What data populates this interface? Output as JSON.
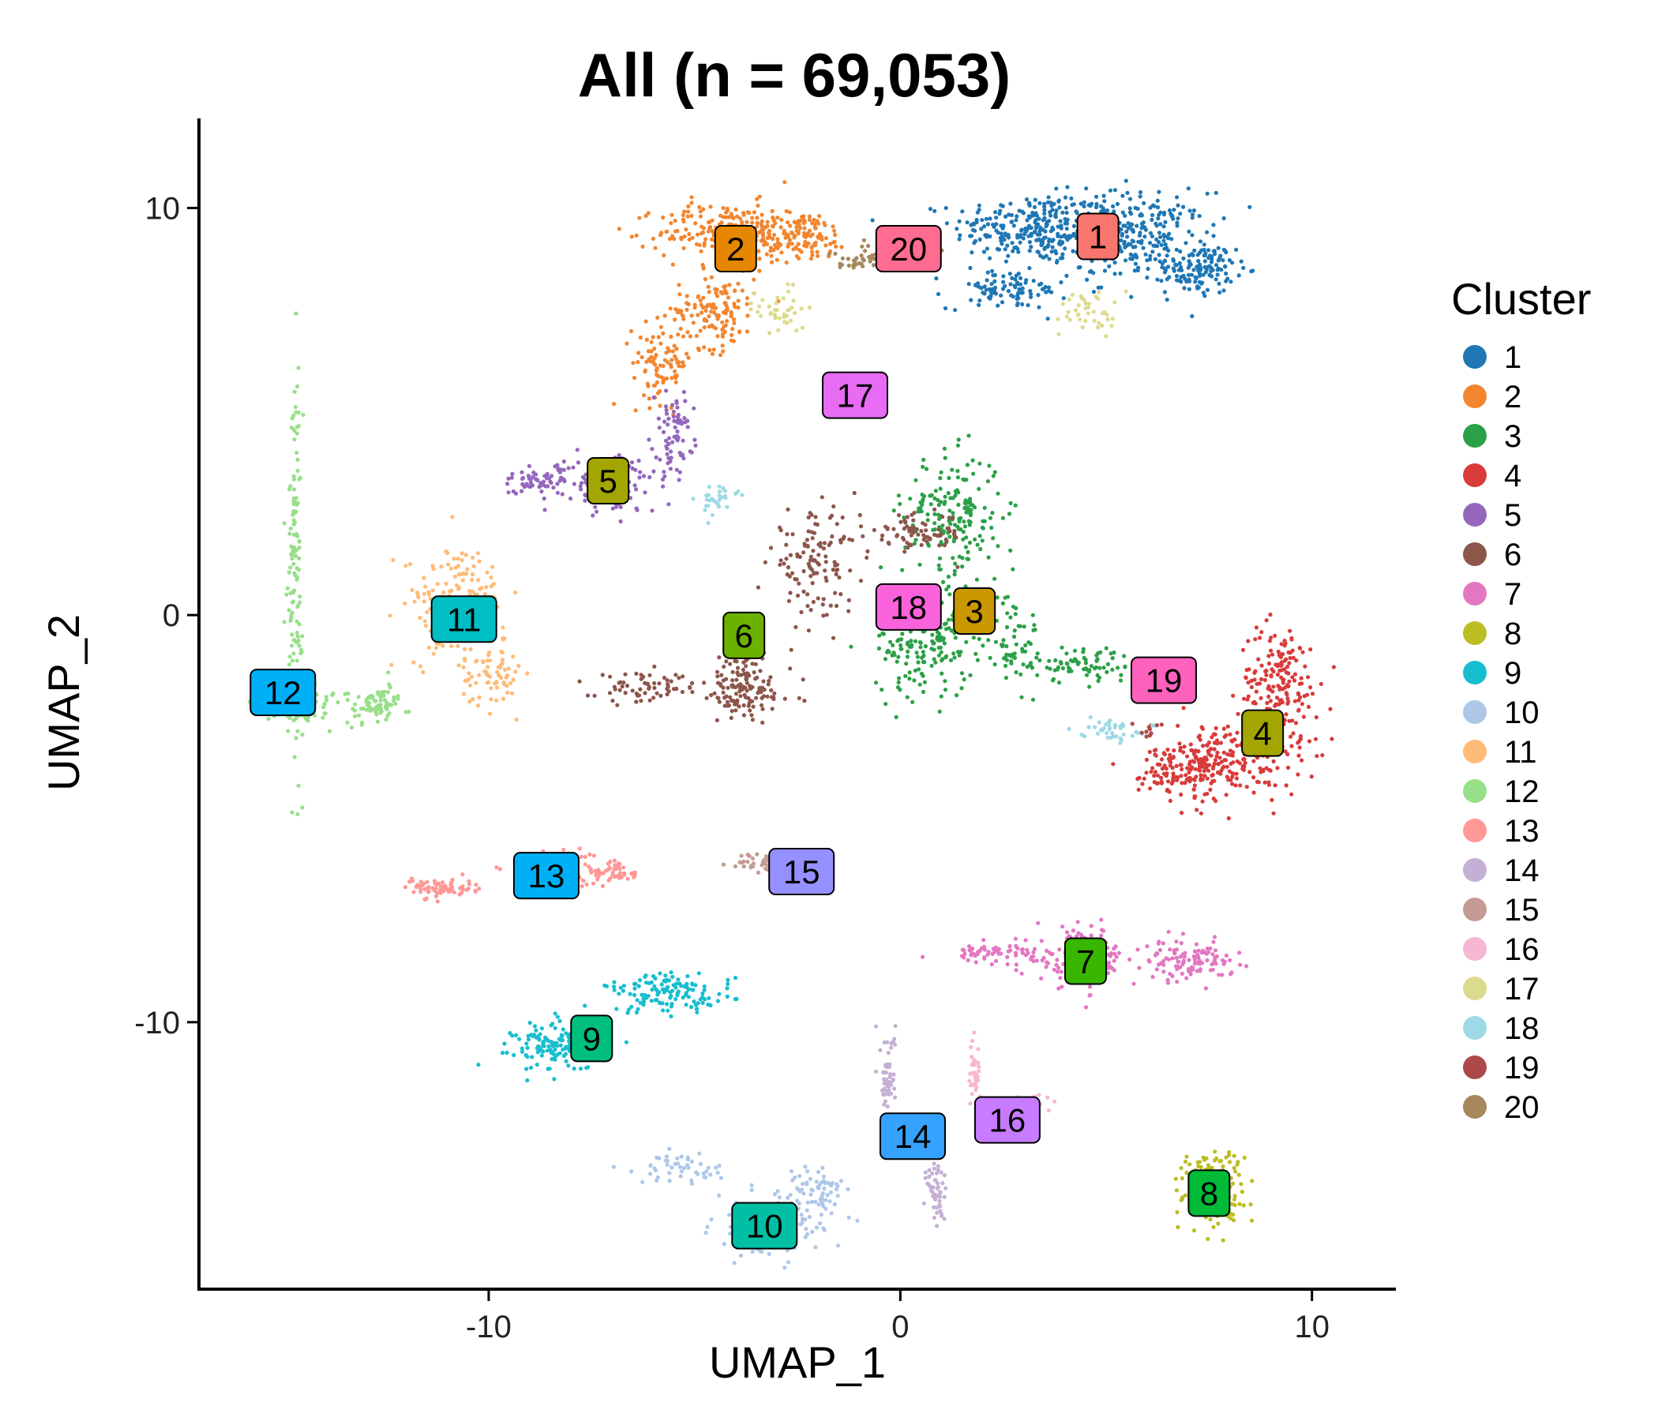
{
  "chart_data": {
    "type": "scatter",
    "title": "All (n = 69,053)",
    "xlabel": "UMAP_1",
    "ylabel": "UMAP_2",
    "xlim": [
      -17,
      12
    ],
    "ylim": [
      -16.5,
      12.2
    ],
    "xticks": [
      -10,
      0,
      10
    ],
    "yticks": [
      10,
      0,
      -10
    ],
    "xtick_labels": [
      "-10",
      "0",
      "10"
    ],
    "ytick_labels": [
      "10",
      "0",
      "-10"
    ],
    "grid": false,
    "legend": {
      "title": "Cluster",
      "placement": "right",
      "entries": [
        {
          "label": "1",
          "color": "#1F77B4"
        },
        {
          "label": "2",
          "color": "#F28630"
        },
        {
          "label": "3",
          "color": "#2CA048"
        },
        {
          "label": "4",
          "color": "#D93B3B"
        },
        {
          "label": "5",
          "color": "#9467BD"
        },
        {
          "label": "6",
          "color": "#8C564B"
        },
        {
          "label": "7",
          "color": "#E377C2"
        },
        {
          "label": "8",
          "color": "#BCBD22"
        },
        {
          "label": "9",
          "color": "#17BECF"
        },
        {
          "label": "10",
          "color": "#AEC7E8"
        },
        {
          "label": "11",
          "color": "#FFBB78"
        },
        {
          "label": "12",
          "color": "#98DF8A"
        },
        {
          "label": "13",
          "color": "#FF9896"
        },
        {
          "label": "14",
          "color": "#C5B0D5"
        },
        {
          "label": "15",
          "color": "#C49C94"
        },
        {
          "label": "16",
          "color": "#F7B6D2"
        },
        {
          "label": "17",
          "color": "#DBDB8D"
        },
        {
          "label": "18",
          "color": "#9EDAE5"
        },
        {
          "label": "19",
          "color": "#AD494A"
        },
        {
          "label": "20",
          "color": "#A5885C"
        }
      ]
    },
    "clusters": [
      {
        "id": "1",
        "centroid": [
          4.8,
          9.3
        ],
        "label_fill": "#F8766D"
      },
      {
        "id": "2",
        "centroid": [
          -4.0,
          9.0
        ],
        "label_fill": "#E58700"
      },
      {
        "id": "3",
        "centroid": [
          1.8,
          0.1
        ],
        "label_fill": "#C99800"
      },
      {
        "id": "4",
        "centroid": [
          8.8,
          -2.9
        ],
        "label_fill": "#A3A500"
      },
      {
        "id": "5",
        "centroid": [
          -7.1,
          3.3
        ],
        "label_fill": "#A3A500"
      },
      {
        "id": "6",
        "centroid": [
          -3.8,
          -0.5
        ],
        "label_fill": "#6BB100"
      },
      {
        "id": "7",
        "centroid": [
          4.5,
          -8.5
        ],
        "label_fill": "#39B600"
      },
      {
        "id": "8",
        "centroid": [
          7.5,
          -14.2
        ],
        "label_fill": "#00BA38"
      },
      {
        "id": "9",
        "centroid": [
          -7.5,
          -10.4
        ],
        "label_fill": "#00BF7D"
      },
      {
        "id": "10",
        "centroid": [
          -3.3,
          -15.0
        ],
        "label_fill": "#00BFA5"
      },
      {
        "id": "11",
        "centroid": [
          -10.6,
          -0.1
        ],
        "label_fill": "#00BFC4"
      },
      {
        "id": "12",
        "centroid": [
          -15.0,
          -1.9
        ],
        "label_fill": "#00B0F6"
      },
      {
        "id": "13",
        "centroid": [
          -8.6,
          -6.4
        ],
        "label_fill": "#00B0F6"
      },
      {
        "id": "14",
        "centroid": [
          0.3,
          -12.8
        ],
        "label_fill": "#35A2FF"
      },
      {
        "id": "15",
        "centroid": [
          -2.4,
          -6.3
        ],
        "label_fill": "#9590FF"
      },
      {
        "id": "16",
        "centroid": [
          2.6,
          -12.4
        ],
        "label_fill": "#C77CFF"
      },
      {
        "id": "17",
        "centroid": [
          -1.1,
          5.4
        ],
        "label_fill": "#E76BF3"
      },
      {
        "id": "18",
        "centroid": [
          0.2,
          0.2
        ],
        "label_fill": "#FA62DB"
      },
      {
        "id": "19",
        "centroid": [
          6.4,
          -1.6
        ],
        "label_fill": "#FF62BC"
      },
      {
        "id": "20",
        "centroid": [
          0.2,
          9.0
        ],
        "label_fill": "#FF6C91"
      }
    ]
  }
}
